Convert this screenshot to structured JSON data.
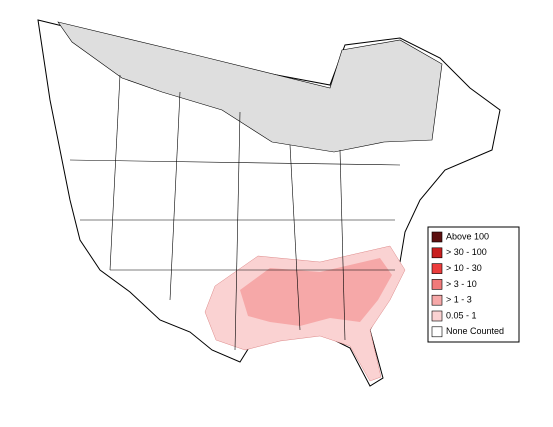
{
  "legend": {
    "items": [
      {
        "label": "Above 100",
        "color": "#5c1010"
      },
      {
        "label": "> 30 - 100",
        "color": "#c81e1e"
      },
      {
        "label": "> 10 - 30",
        "color": "#ec3c3c"
      },
      {
        "label": "> 3 - 10",
        "color": "#f07a7a"
      },
      {
        "label": "> 1 - 3",
        "color": "#f6a8a8"
      },
      {
        "label": "0.05 - 1",
        "color": "#fad2d2"
      },
      {
        "label": "None Counted",
        "color": "#ffffff"
      }
    ]
  }
}
